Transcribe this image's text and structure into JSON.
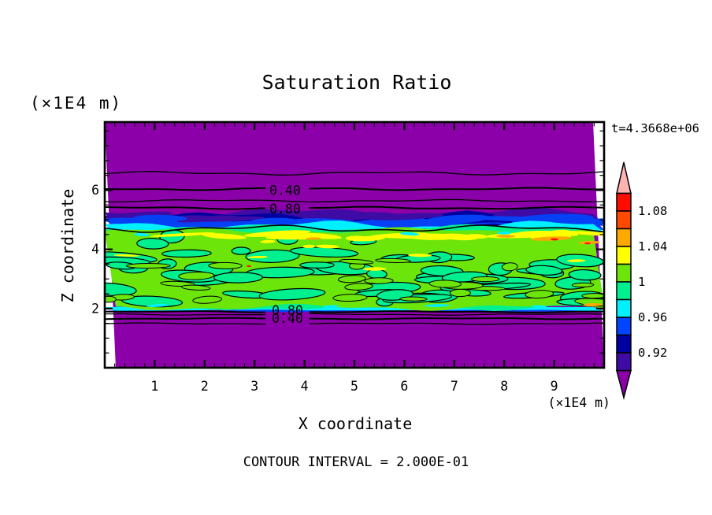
{
  "header": {
    "title": "Saturation Ratio",
    "y_unit_label": "(×1E4 m)",
    "time_label": "t=4.3668e+06"
  },
  "axes": {
    "x": {
      "label": "X coordinate",
      "unit_label": "(×1E4 m)",
      "ticks": [
        "1",
        "2",
        "3",
        "4",
        "5",
        "6",
        "7",
        "8",
        "9"
      ],
      "tick_values": [
        1,
        2,
        3,
        4,
        5,
        6,
        7,
        8,
        9
      ],
      "range": [
        0,
        10
      ],
      "minor_step": 0.2
    },
    "y": {
      "label": "Z coordinate",
      "ticks": [
        "2",
        "4",
        "6"
      ],
      "tick_values": [
        2,
        4,
        6
      ],
      "range": [
        0,
        8.3
      ],
      "minor_step": 0.5
    }
  },
  "footer": {
    "contour_interval_label": "CONTOUR INTERVAL = 2.000E-01"
  },
  "colorbar": {
    "over_color": "#FFB2B2",
    "under_color": "#8B00A8",
    "segments": [
      {
        "color": "#FF0C00",
        "hi": 1.1,
        "lo": 1.08
      },
      {
        "color": "#FF4800",
        "hi": 1.08,
        "lo": 1.06
      },
      {
        "color": "#FFA800",
        "hi": 1.06,
        "lo": 1.04
      },
      {
        "color": "#FFFF00",
        "hi": 1.04,
        "lo": 1.02
      },
      {
        "color": "#6CE50A",
        "hi": 1.02,
        "lo": 1.0
      },
      {
        "color": "#00F090",
        "hi": 1.0,
        "lo": 0.98
      },
      {
        "color": "#00F0FF",
        "hi": 0.98,
        "lo": 0.96
      },
      {
        "color": "#0044FF",
        "hi": 0.96,
        "lo": 0.94
      },
      {
        "color": "#0000A0",
        "hi": 0.94,
        "lo": 0.92
      },
      {
        "color": "#3F0BA5",
        "hi": 0.92,
        "lo": 0.9
      }
    ],
    "labels": [
      {
        "text": "1.08",
        "boundary": 1
      },
      {
        "text": "1.04",
        "boundary": 3
      },
      {
        "text": "1",
        "boundary": 5
      },
      {
        "text": "0.96",
        "boundary": 7
      },
      {
        "text": "0.92",
        "boundary": 9
      }
    ]
  },
  "chart_data": {
    "type": "heatmap",
    "title": "Saturation Ratio",
    "xlabel": "X coordinate (×1E4 m)",
    "ylabel": "Z coordinate (×1E4 m)",
    "time_annotation": "t=4.3668e+06",
    "x_range": [
      0,
      10
    ],
    "y_range": [
      0,
      8.3
    ],
    "contour_interval": "2.000E-01",
    "legend_position": "right-colorbar",
    "description": "Filled contour field of saturation ratio: uniform low-value purple background above z=5.2 and below z=1.9, a dark-blue/blue/cyan transition layer near z=4.6-5.2, and a mottled green band (values near 1.0) between z=2.0 and 4.7 with yellow/orange streaks near its top edge.",
    "palette": {
      "purple": "#8B00A8",
      "dark_violet": "#3F0BA5",
      "navy": "#0000A0",
      "blue": "#0540F5",
      "cyan": "#00F0FF",
      "spring_green": "#00F090",
      "green_yellow": "#6CE50A",
      "yellow": "#FFFF00",
      "orange": "#FFA800",
      "red": "#FF0C00",
      "contour_line": "#000000"
    },
    "bands": [
      {
        "name": "background-purple",
        "color": "#8B00A8",
        "y0": 0.0,
        "y1": 8.3,
        "amp": 0
      },
      {
        "name": "dark-violet-layer",
        "color": "#3F0BA5",
        "y0": 4.8,
        "y1": 5.25,
        "amp": 4
      },
      {
        "name": "navy-layer",
        "color": "#0000A0",
        "y0": 4.76,
        "y1": 5.1,
        "amp": 5
      },
      {
        "name": "blue-layer",
        "color": "#0540F5",
        "y0": 4.72,
        "y1": 4.95,
        "amp": 4
      },
      {
        "name": "cyan-layer",
        "color": "#00F0FF",
        "y0": 4.56,
        "y1": 4.82,
        "amp": 4
      },
      {
        "name": "spring-green-band",
        "color": "#00F090",
        "y0": 2.04,
        "y1": 4.73,
        "amp": 3
      },
      {
        "name": "green-yellow-band",
        "color": "#6CE50A",
        "y0": 2.04,
        "y1": 4.63,
        "amp": 3
      },
      {
        "name": "bottom-cyan-strip",
        "color": "#00F0FF",
        "y0": 1.93,
        "y1": 2.04,
        "amp": 0.6
      },
      {
        "name": "bottom-blue-hairline",
        "color": "#0540F5",
        "y0": 1.9,
        "y1": 1.94,
        "amp": 0.5
      }
    ],
    "contour_lines": [
      {
        "y": 6.57,
        "amp": 1.5,
        "w": 1.3
      },
      {
        "y": 6.04,
        "amp": 1.0,
        "w": 2.0,
        "gap": true
      },
      {
        "y": 5.64,
        "amp": 1.0,
        "w": 1.3
      },
      {
        "y": 5.4,
        "amp": 1.0,
        "w": 2.0,
        "gap": true
      },
      {
        "y": 4.7,
        "amp": 3.0,
        "w": 1.6
      },
      {
        "y": 1.89,
        "amp": 0.6,
        "w": 2.0,
        "gap": true
      },
      {
        "y": 1.8,
        "amp": 0.6,
        "w": 1.3,
        "gap": true
      },
      {
        "y": 1.66,
        "amp": 0.6,
        "w": 2.0,
        "gap": true
      },
      {
        "y": 1.49,
        "amp": 0.6,
        "w": 1.3,
        "gap": true
      }
    ],
    "contour_line_labels": [
      {
        "text": "0.40",
        "x": 3.61,
        "y": 5.99
      },
      {
        "text": "0.80",
        "x": 3.61,
        "y": 5.36
      },
      {
        "text": "0.80",
        "x": 3.66,
        "y": 1.93
      },
      {
        "text": "0.40",
        "x": 3.66,
        "y": 1.66
      }
    ]
  }
}
